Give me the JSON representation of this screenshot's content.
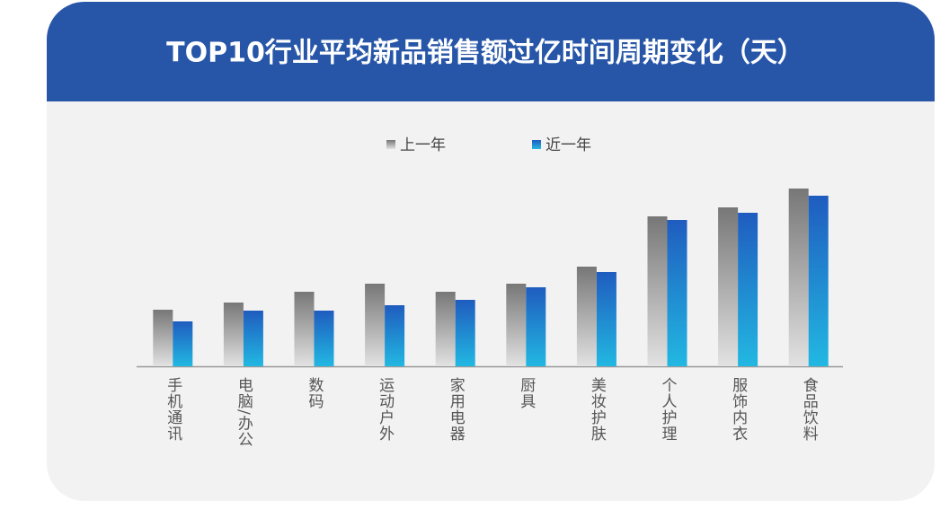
{
  "chart_data": {
    "type": "bar",
    "title": "TOP10行业平均新品销售额过亿时间周期变化（天）",
    "categories": [
      "手机通讯",
      "电脑/办公",
      "数码",
      "运动户外",
      "家用电器",
      "厨具",
      "美妆护肤",
      "个人护理",
      "服饰内衣",
      "食品饮料"
    ],
    "series": [
      {
        "name": "上一年",
        "color": "#777777",
        "values": [
          63,
          71,
          83,
          92,
          83,
          92,
          111,
          167,
          177,
          198
        ]
      },
      {
        "name": "近一年",
        "color": "#1f5cbf",
        "values": [
          50,
          62,
          62,
          68,
          74,
          88,
          105,
          163,
          171,
          190
        ]
      }
    ],
    "legend": "top"
  }
}
